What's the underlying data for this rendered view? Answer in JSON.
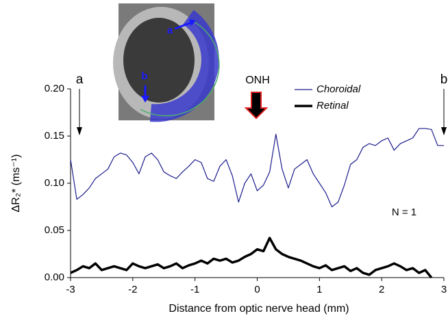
{
  "chart_data": {
    "type": "line",
    "x_label": "Distance from optic nerve head (mm)",
    "y_label": "ΔR₂* (ms⁻¹)",
    "x": [
      -3,
      -2.9,
      -2.8,
      -2.7,
      -2.6,
      -2.5,
      -2.4,
      -2.3,
      -2.2,
      -2.1,
      -2,
      -1.9,
      -1.8,
      -1.7,
      -1.6,
      -1.5,
      -1.4,
      -1.3,
      -1.2,
      -1.1,
      -1,
      -0.9,
      -0.8,
      -0.7,
      -0.6,
      -0.5,
      -0.4,
      -0.3,
      -0.2,
      -0.1,
      0,
      0.1,
      0.2,
      0.3,
      0.4,
      0.5,
      0.6,
      0.7,
      0.8,
      0.9,
      1,
      1.1,
      1.2,
      1.3,
      1.4,
      1.5,
      1.6,
      1.7,
      1.8,
      1.9,
      2,
      2.1,
      2.2,
      2.3,
      2.4,
      2.5,
      2.6,
      2.7,
      2.8,
      2.9,
      3
    ],
    "series": [
      {
        "name": "Choroidal",
        "color": "#1a1a8c",
        "width": 1.2,
        "values": [
          0.125,
          0.083,
          0.088,
          0.095,
          0.105,
          0.11,
          0.115,
          0.128,
          0.132,
          0.13,
          0.122,
          0.11,
          0.128,
          0.132,
          0.125,
          0.112,
          0.108,
          0.105,
          0.112,
          0.118,
          0.125,
          0.122,
          0.105,
          0.102,
          0.118,
          0.125,
          0.108,
          0.08,
          0.1,
          0.11,
          0.092,
          0.098,
          0.112,
          0.152,
          0.115,
          0.095,
          0.115,
          0.12,
          0.125,
          0.11,
          0.1,
          0.09,
          0.075,
          0.08,
          0.098,
          0.12,
          0.125,
          0.138,
          0.142,
          0.14,
          0.145,
          0.148,
          0.135,
          0.142,
          0.145,
          0.148,
          0.158,
          0.158,
          0.157,
          0.14,
          0.14
        ]
      },
      {
        "name": "Retinal",
        "color": "#000000",
        "width": 3.5,
        "values": [
          0.005,
          0.008,
          0.012,
          0.01,
          0.015,
          0.008,
          0.01,
          0.012,
          0.01,
          0.008,
          0.015,
          0.012,
          0.01,
          0.012,
          0.014,
          0.01,
          0.012,
          0.015,
          0.01,
          0.013,
          0.015,
          0.018,
          0.015,
          0.02,
          0.018,
          0.02,
          0.016,
          0.018,
          0.022,
          0.025,
          0.03,
          0.028,
          0.042,
          0.03,
          0.025,
          0.022,
          0.02,
          0.018,
          0.015,
          0.012,
          0.01,
          0.013,
          0.008,
          0.01,
          0.012,
          0.007,
          0.01,
          0.005,
          0.003,
          0.008,
          0.01,
          0.012,
          0.015,
          0.012,
          0.008,
          0.01,
          0.005,
          0.008,
          0,
          null,
          null
        ]
      }
    ],
    "xlim": [
      -3,
      3
    ],
    "xticks": [
      -3,
      -2,
      -1,
      0,
      1,
      2,
      3
    ],
    "ylim": [
      0,
      0.2
    ],
    "yticks": [
      {
        "value": 0,
        "label": "0.00"
      },
      {
        "value": 0.05,
        "label": "0.05"
      },
      {
        "value": 0.1,
        "label": "0.10"
      },
      {
        "value": 0.15,
        "label": "0.15"
      },
      {
        "value": 0.2,
        "label": "0.20"
      }
    ],
    "annotations": [
      "a",
      "b",
      "ONH",
      "N = 1"
    ],
    "inset_labels": [
      "a",
      "b"
    ]
  }
}
